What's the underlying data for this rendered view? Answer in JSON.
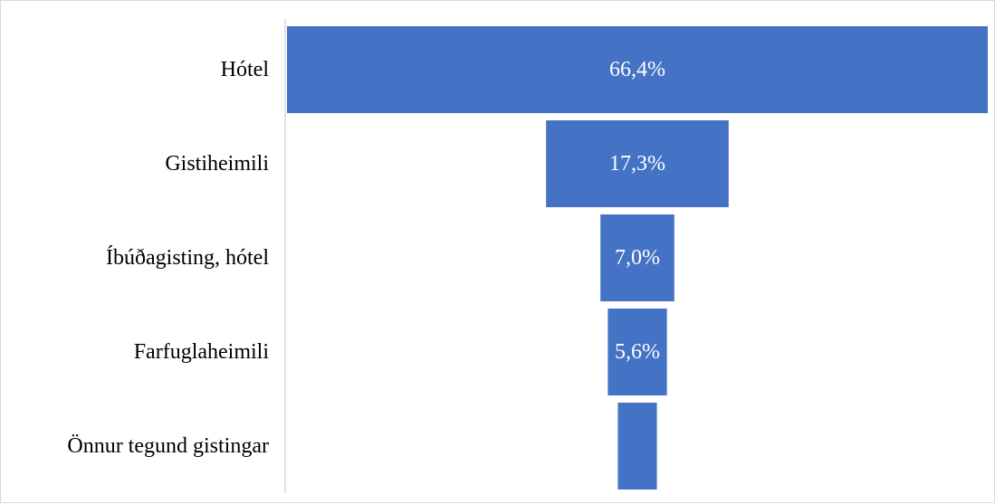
{
  "chart_data": {
    "type": "funnel",
    "title": "",
    "xlabel": "",
    "ylabel": "",
    "categories": [
      "Hótel",
      "Gistiheimili",
      "Íbúðagisting, hótel",
      "Farfuglaheimili",
      "Önnur tegund gistingar"
    ],
    "values": [
      66.4,
      17.3,
      7.0,
      5.6,
      3.7
    ],
    "data_labels": [
      "66,4%",
      "17,3%",
      "7,0%",
      "5,6%",
      ""
    ],
    "unit": "%",
    "bar_color": "#4472C4",
    "axis_line_color": "#d9d9d9",
    "grid": false,
    "legend": "none"
  }
}
